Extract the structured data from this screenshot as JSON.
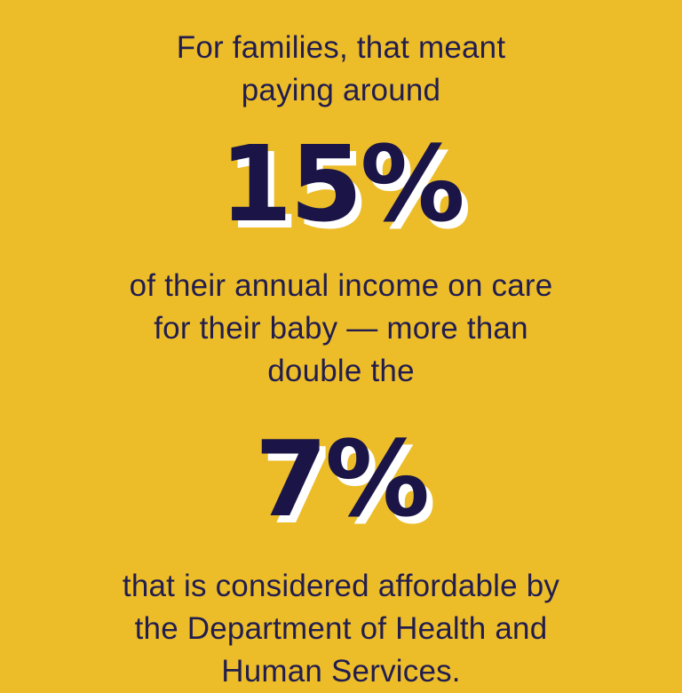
{
  "colors": {
    "background": "#ecbd29",
    "body_text": "#221d4e",
    "stat_text": "#1b1547",
    "stat_shadow": "#ffffff"
  },
  "infographic": {
    "intro": {
      "lines": [
        "For families, that meant",
        "paying around"
      ]
    },
    "stat_primary": {
      "value": "15%"
    },
    "body": {
      "lines": [
        "of their annual income on care",
        "for their baby — more than",
        "double the"
      ]
    },
    "stat_secondary": {
      "value": "7%"
    },
    "footer": {
      "lines": [
        "that is considered affordable by",
        "the Department of Health and",
        "Human Services."
      ]
    }
  }
}
